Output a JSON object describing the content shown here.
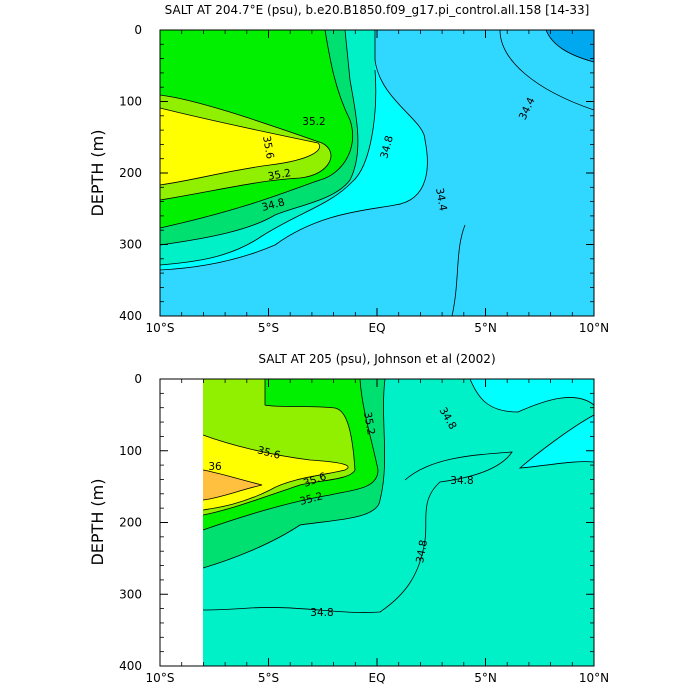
{
  "chart_data": [
    {
      "type": "contour",
      "title": "SALT AT 204.7°E (psu), b.e20.B1850.f09_g17.pi_control.all.158 [14-33]",
      "ylabel": "DEPTH (m)",
      "xlim": [
        -10,
        10
      ],
      "ylim": [
        0,
        400
      ],
      "y_inverted": true,
      "x_ticks": [
        -10,
        -5,
        0,
        5,
        10
      ],
      "x_tick_labels": [
        "10°S",
        "5°S",
        "EQ",
        "5°N",
        "10°N"
      ],
      "y_ticks": [
        0,
        100,
        200,
        300,
        400
      ],
      "y_tick_labels": [
        "0",
        "100",
        "200",
        "300",
        "400"
      ],
      "contour_interval": 0.2,
      "contour_labels": [
        "35.2",
        "35.6",
        "35.2",
        "34.8",
        "34.8",
        "34.4",
        "34.4"
      ],
      "colors": {
        "34.2": "#00a8f0",
        "34.4": "#30d8ff",
        "34.6": "#00ffff",
        "34.8": "#00f0c8",
        "35.0": "#00e070",
        "35.2": "#00f000",
        "35.4": "#90f000",
        "35.6": "#ffff00",
        "36.0": "#ffc040"
      }
    },
    {
      "type": "contour",
      "title": "SALT AT 205 (psu), Johnson et al (2002)",
      "ylabel": "DEPTH (m)",
      "xlim": [
        -10,
        10
      ],
      "ylim": [
        0,
        400
      ],
      "y_inverted": true,
      "x_ticks": [
        -10,
        -5,
        0,
        5,
        10
      ],
      "x_tick_labels": [
        "10°S",
        "5°S",
        "EQ",
        "5°N",
        "10°N"
      ],
      "y_ticks": [
        0,
        100,
        200,
        300,
        400
      ],
      "y_tick_labels": [
        "0",
        "100",
        "200",
        "300",
        "400"
      ],
      "contour_interval": 0.2,
      "contour_labels": [
        "35.6",
        "36",
        "35.6",
        "35.2",
        "35.2",
        "34.8",
        "34.8",
        "34.8",
        "34.8"
      ],
      "colors": {
        "34.6": "#00ffff",
        "34.8": "#00f0c8",
        "35.0": "#00e070",
        "35.2": "#00f000",
        "35.4": "#90f000",
        "35.6": "#ffff00",
        "36.0": "#ffc040"
      }
    }
  ]
}
